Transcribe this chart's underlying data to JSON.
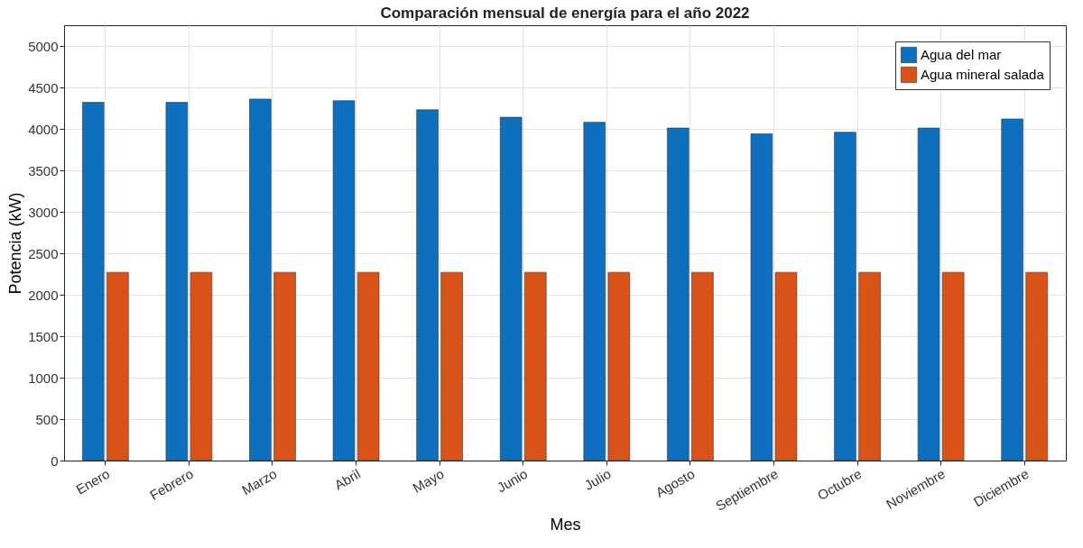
{
  "chart_data": {
    "type": "bar",
    "title": "Comparación mensual de energía para el año 2022",
    "xlabel": "Mes",
    "ylabel": "Potencia (kW)",
    "categories": [
      "Enero",
      "Febrero",
      "Marzo",
      "Abril",
      "Mayo",
      "Junio",
      "Julio",
      "Agosto",
      "Septiembre",
      "Octubre",
      "Noviembre",
      "Diciembre"
    ],
    "series": [
      {
        "name": "Agua del mar",
        "color": "#0f6fbf",
        "values": [
          4320,
          4320,
          4360,
          4340,
          4230,
          4140,
          4080,
          4010,
          3940,
          3960,
          4010,
          4120
        ]
      },
      {
        "name": "Agua mineral salada",
        "color": "#d95319",
        "values": [
          2270,
          2270,
          2270,
          2270,
          2270,
          2270,
          2270,
          2270,
          2270,
          2270,
          2270,
          2270
        ]
      }
    ],
    "ylim": [
      0,
      5250
    ],
    "yticks": [
      0,
      500,
      1000,
      1500,
      2000,
      2500,
      3000,
      3500,
      4000,
      4500,
      5000
    ],
    "grid": true,
    "legend": "top right"
  }
}
